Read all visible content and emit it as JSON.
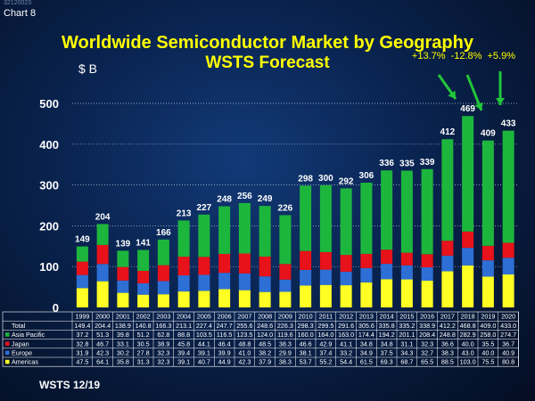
{
  "doc_code": "32120023",
  "chart_number": "Chart 8",
  "title_line1": "Worldwide Semiconductor Market by Geography",
  "title_line2": "WSTS Forecast",
  "unit": "$ B",
  "growth_annotations": "+13.7%  -12.8% +5.9%",
  "source": "WSTS 12/19",
  "colors": {
    "asia_pacific": "#1db63d",
    "japan": "#e8121a",
    "europe": "#2e6fd6",
    "americas": "#ffff24",
    "arrow": "#22c63a",
    "gridline": "#ffffff"
  },
  "chart_data": {
    "type": "bar",
    "stacked": true,
    "title": "Worldwide Semiconductor Market by Geography",
    "subtitle": "WSTS Forecast",
    "ylabel": "$ B",
    "ylim": [
      0,
      500
    ],
    "yticks": [
      "0",
      "100",
      "200",
      "300",
      "400",
      "500"
    ],
    "categories": [
      "1999",
      "2000",
      "2001",
      "2002",
      "2003",
      "2004",
      "2005",
      "2006",
      "2007",
      "2008",
      "2009",
      "2010",
      "2011",
      "2012",
      "2013",
      "2014",
      "2015",
      "2016",
      "2017",
      "2018",
      "2019",
      "2020"
    ],
    "totals_labels": [
      "149",
      "204",
      "139",
      "141",
      "166",
      "213",
      "227",
      "248",
      "256",
      "249",
      "226",
      "298",
      "300",
      "292",
      "306",
      "336",
      "335",
      "339",
      "412",
      "469",
      "409",
      "433"
    ],
    "series": [
      {
        "name": "Americas",
        "color_key": "americas",
        "values": [
          47.5,
          64.1,
          35.8,
          31.3,
          32.3,
          39.1,
          40.7,
          44.9,
          42.3,
          37.9,
          38.3,
          53.7,
          55.2,
          54.4,
          61.5,
          69.3,
          68.7,
          65.5,
          88.5,
          103.0,
          75.5,
          80.8
        ],
        "labels": [
          "47.5",
          "64.1",
          "35.8",
          "31.3",
          "32.3",
          "39.1",
          "40.7",
          "44.9",
          "42.3",
          "37.9",
          "38.3",
          "53.7",
          "55.2",
          "54.4",
          "61.5",
          "69.3",
          "68.7",
          "65.5",
          "88.5",
          "103.0",
          "75.5",
          "80.8"
        ]
      },
      {
        "name": "Europe",
        "color_key": "europe",
        "values": [
          31.9,
          42.3,
          30.2,
          27.8,
          32.3,
          39.4,
          39.1,
          39.9,
          41.0,
          38.2,
          29.9,
          38.1,
          37.4,
          33.2,
          34.9,
          37.5,
          34.3,
          32.7,
          38.3,
          43.0,
          40.0,
          40.9
        ],
        "labels": [
          "31.9",
          "42.3",
          "30.2",
          "27.8",
          "32.3",
          "39.4",
          "39.1",
          "39.9",
          "41.0",
          "38.2",
          "29.9",
          "38.1",
          "37.4",
          "33.2",
          "34.9",
          "37.5",
          "34.3",
          "32.7",
          "38.3",
          "43.0",
          "40.0",
          "40.9"
        ]
      },
      {
        "name": "Japan",
        "color_key": "japan",
        "values": [
          32.8,
          46.7,
          33.1,
          30.5,
          38.9,
          45.8,
          44.1,
          46.4,
          48.8,
          48.5,
          38.3,
          46.6,
          42.9,
          41.1,
          34.8,
          34.8,
          31.1,
          32.3,
          36.6,
          40.0,
          35.5,
          36.7
        ],
        "labels": [
          "32.8",
          "46.7",
          "33.1",
          "30.5",
          "38.9",
          "45.8",
          "44.1",
          "46.4",
          "48.8",
          "48.5",
          "38.3",
          "46.6",
          "42.9",
          "41.1",
          "34.8",
          "34.8",
          "31.1",
          "32.3",
          "36.6",
          "40.0",
          "35.5",
          "36.7"
        ]
      },
      {
        "name": "Asia Pacific",
        "color_key": "asia_pacific",
        "values": [
          37.2,
          51.3,
          39.8,
          51.2,
          62.8,
          88.8,
          103.5,
          116.5,
          123.5,
          124.0,
          119.6,
          160.0,
          164.0,
          163.0,
          174.4,
          194.2,
          201.1,
          208.4,
          248.8,
          282.9,
          258.0,
          274.7
        ],
        "labels": [
          "37.2",
          "51.3",
          "39.8",
          "51.2",
          "62.8",
          "88.8",
          "103.5",
          "116.5",
          "123.5",
          "124.0",
          "119.6",
          "160.0",
          "164.0",
          "163.0",
          "174.4",
          "194.2",
          "201.1",
          "208.4",
          "248.8",
          "282.9",
          "258.0",
          "274.7"
        ]
      }
    ],
    "table": {
      "total_row_label": "Total",
      "total_values": [
        "149.4",
        "204.4",
        "138.9",
        "140.8",
        "166.3",
        "213.1",
        "227.4",
        "247.7",
        "255.6",
        "248.6",
        "226.3",
        "298.3",
        "299.5",
        "291.6",
        "305.6",
        "335.8",
        "335.2",
        "338.9",
        "412.2",
        "468.8",
        "409.0",
        "433.0"
      ],
      "row_order": [
        "Asia Pacific",
        "Japan",
        "Europe",
        "Americas"
      ]
    }
  }
}
